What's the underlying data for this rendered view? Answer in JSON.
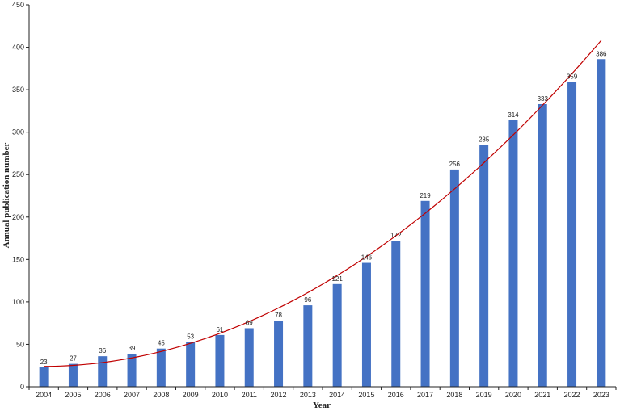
{
  "chart_data": {
    "type": "bar",
    "categories": [
      "2004",
      "2005",
      "2006",
      "2007",
      "2008",
      "2009",
      "2010",
      "2011",
      "2012",
      "2013",
      "2014",
      "2015",
      "2016",
      "2017",
      "2018",
      "2019",
      "2020",
      "2021",
      "2022",
      "2023"
    ],
    "series": [
      {
        "values": [
          23,
          27,
          36,
          39,
          45,
          53,
          61,
          69,
          78,
          96,
          121,
          146,
          172,
          219,
          256,
          285,
          314,
          333,
          359,
          386
        ]
      }
    ],
    "trendline": {
      "type": "polynomial",
      "order": 2
    },
    "xlabel": "Year",
    "ylabel": "Annual publication number",
    "ylim": [
      0,
      450
    ],
    "yticks": [
      0,
      50,
      100,
      150,
      200,
      250,
      300,
      350,
      400,
      450
    ],
    "grid": false,
    "legend": "none",
    "colors": {
      "bar": "#4472C4",
      "trend": "#C00000",
      "axis": "#222222"
    }
  }
}
